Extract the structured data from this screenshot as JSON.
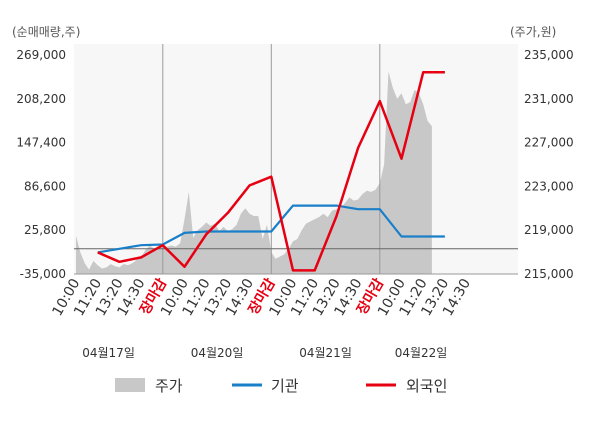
{
  "chart_data": {
    "type": "line",
    "left_unit": "(순매매량,주)",
    "right_unit": "(주가,원)",
    "left_ticks": [
      "269,000",
      "208,200",
      "147,400",
      "86,600",
      "25,800",
      "-35,000"
    ],
    "right_ticks": [
      "235,000",
      "231,000",
      "227,000",
      "223,000",
      "219,000",
      "215,000"
    ],
    "left_ylim": [
      -35000,
      269000
    ],
    "right_ylim": [
      215000,
      235000
    ],
    "x_ticks": [
      "10:00",
      "11:20",
      "13:20",
      "14:30",
      "장마감",
      "10:00",
      "11:20",
      "13:20",
      "14:30",
      "장마감",
      "10:00",
      "11:20",
      "13:20",
      "14:30",
      "장마감",
      "10:00",
      "11:20",
      "13:20",
      "14:30"
    ],
    "market_close_label": "장마감",
    "dates": [
      "04월17일",
      "04월20일",
      "04월21일",
      "04월22일"
    ],
    "legend": [
      {
        "label": "주가",
        "color": "#c8c8c8"
      },
      {
        "label": "기관",
        "color": "#1a7fc9"
      },
      {
        "label": "외국인",
        "color": "#e60012"
      }
    ],
    "series": [
      {
        "name": "기관",
        "color": "#1a7fc9",
        "axis": "left",
        "x": [
          1,
          2,
          3,
          4,
          5,
          6,
          7,
          8,
          9,
          10,
          11,
          12,
          13,
          14,
          15,
          16,
          17
        ],
        "values": [
          -5000,
          0,
          5000,
          6000,
          22000,
          24000,
          24000,
          24000,
          24000,
          60000,
          60000,
          60000,
          55000,
          55000,
          17000,
          17000,
          17000
        ]
      },
      {
        "name": "외국인",
        "color": "#e60012",
        "axis": "left",
        "x": [
          1,
          2,
          3,
          4,
          5,
          6,
          7,
          8,
          9,
          10,
          11,
          12,
          13,
          14,
          15,
          16,
          17
        ],
        "values": [
          -5000,
          -18000,
          -12000,
          5000,
          -25000,
          20000,
          50000,
          88000,
          100000,
          -30000,
          -30000,
          45000,
          140000,
          205000,
          125000,
          245000,
          245000
        ]
      },
      {
        "name": "주가",
        "color": "#c8c8c8",
        "axis": "right",
        "x": [
          0,
          0.2,
          0.4,
          0.6,
          0.8,
          1,
          1.2,
          1.4,
          1.6,
          1.8,
          2,
          2.2,
          2.4,
          2.6,
          2.8,
          3,
          3.2,
          3.4,
          3.6,
          3.8,
          4,
          4.2,
          4.4,
          4.6,
          4.8,
          5,
          5.2,
          5.4,
          5.6,
          5.8,
          6,
          6.2,
          6.4,
          6.6,
          6.8,
          7,
          7.2,
          7.4,
          7.6,
          7.8,
          8,
          8.2,
          8.4,
          8.6,
          8.8,
          9,
          9.2,
          9.4,
          9.6,
          9.8,
          10,
          10.2,
          10.4,
          10.6,
          10.8,
          11,
          11.2,
          11.4,
          11.6,
          11.8,
          12,
          12.2,
          12.4,
          12.6,
          12.8,
          13,
          13.2,
          13.4,
          13.6,
          13.8,
          14,
          14.2,
          14.4,
          14.6,
          14.8,
          15,
          15.2,
          15.4,
          15.6,
          15.8,
          16,
          16.2,
          16.4
        ],
        "values": [
          218500,
          217000,
          216000,
          215400,
          216200,
          215800,
          215500,
          215600,
          215900,
          215700,
          215600,
          215900,
          215800,
          216000,
          216300,
          216500,
          217200,
          217600,
          217300,
          217500,
          217400,
          217500,
          217600,
          217500,
          217800,
          220000,
          222500,
          218300,
          219000,
          219300,
          219700,
          219400,
          219600,
          218900,
          219300,
          218900,
          219100,
          219500,
          220500,
          221000,
          220500,
          220300,
          220300,
          218200,
          219500,
          217000,
          216400,
          216600,
          216800,
          217300,
          218000,
          218200,
          219000,
          219600,
          219800,
          220000,
          220200,
          220500,
          220200,
          220800,
          220900,
          221000,
          221500,
          222000,
          221700,
          221800,
          222300,
          222600,
          222500,
          222700,
          223300,
          225000,
          233500,
          232000,
          231000,
          231500,
          230500,
          230700,
          231800,
          231500,
          230500,
          229000,
          228500
        ]
      }
    ]
  }
}
